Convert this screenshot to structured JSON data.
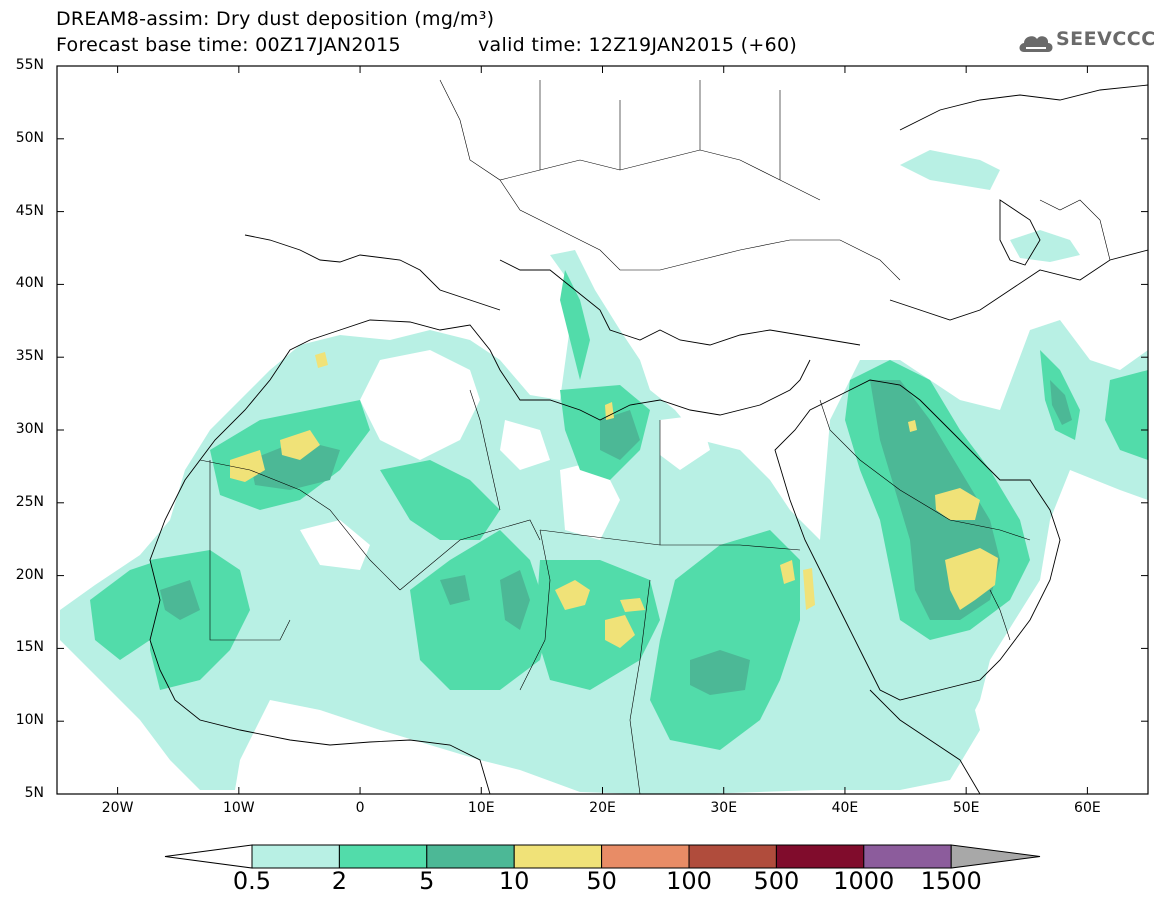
{
  "title": {
    "line1": "DREAM8-assim: Dry dust deposition (mg/m³)",
    "line2": "Forecast base time: 00Z17JAN2015",
    "valid": "valid time: 12Z19JAN2015 (+60)"
  },
  "logo": {
    "text": "SEEVCCC",
    "icon": "cloud-icon"
  },
  "map": {
    "lat_labels": [
      "55N",
      "50N",
      "45N",
      "40N",
      "35N",
      "30N",
      "25N",
      "20N",
      "15N",
      "10N",
      "5N"
    ],
    "lon_labels": [
      "20W",
      "10W",
      "0",
      "10E",
      "20E",
      "30E",
      "40E",
      "50E",
      "60E"
    ],
    "lon_range": [
      -25,
      65
    ],
    "lat_range": [
      5,
      55
    ]
  },
  "colorbar": {
    "labels": [
      "0.5",
      "2",
      "5",
      "10",
      "50",
      "100",
      "500",
      "1000",
      "1500"
    ],
    "colors": [
      "#b8f0e4",
      "#52dcaa",
      "#4cb896",
      "#f0e278",
      "#e88c66",
      "#b04c3c",
      "#800c2c",
      "#8c5c9c"
    ],
    "under_color": "#ffffff",
    "over_color": "#a8a8a8"
  }
}
